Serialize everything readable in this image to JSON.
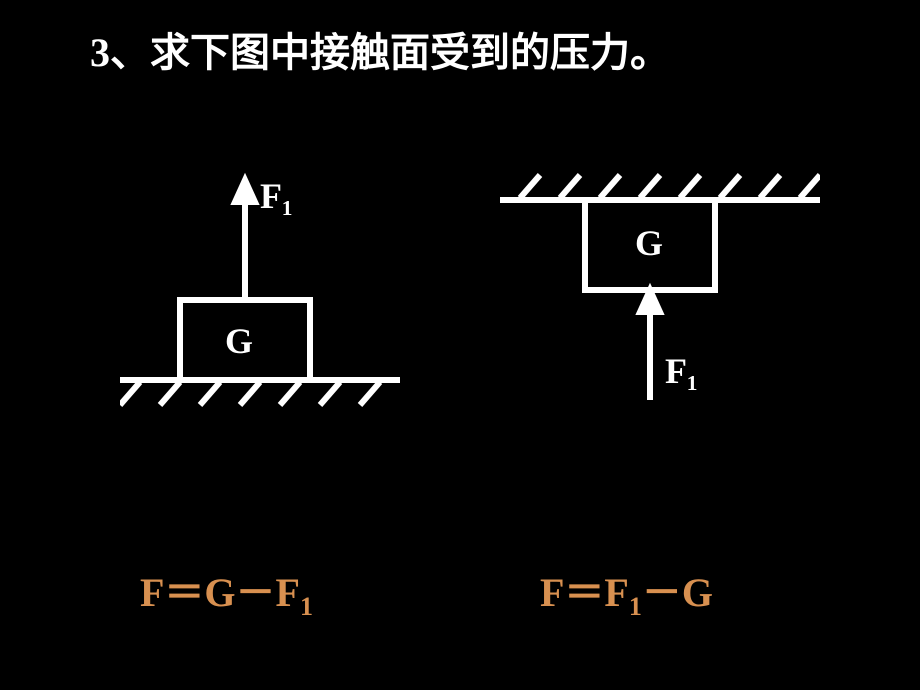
{
  "title": "3、求下图中接触面受到的压力。",
  "diagrams": {
    "left": {
      "box_label": "G",
      "force_label": "F₁",
      "formula_html": "F＝G－F<span class=\"sub\">1</span>",
      "surface_type": "floor",
      "stroke_color": "#ffffff",
      "stroke_width": 6
    },
    "right": {
      "box_label": "G",
      "force_label": "F₁",
      "formula_html": "F＝F<span class=\"sub\">1</span>－G",
      "surface_type": "ceiling",
      "stroke_color": "#ffffff",
      "stroke_width": 6
    }
  },
  "colors": {
    "background": "#000000",
    "lines": "#ffffff",
    "text": "#ffffff",
    "formula": "#d89050"
  },
  "typography": {
    "title_fontsize": 40,
    "label_fontsize": 36,
    "formula_fontsize": 40
  }
}
